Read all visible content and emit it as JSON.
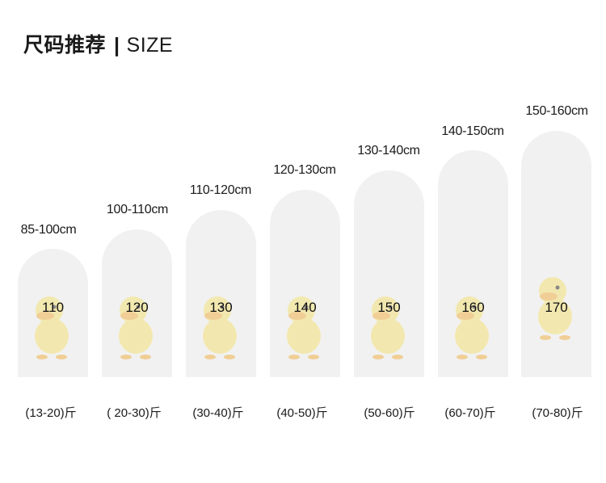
{
  "title": {
    "cn": "尺码推荐",
    "separator": "|",
    "en": "SIZE"
  },
  "sizes": [
    {
      "height": "85-100cm",
      "size": "110",
      "weight": "(13-20)斤"
    },
    {
      "height": "100-110cm",
      "size": "120",
      "weight": "( 20-30)斤"
    },
    {
      "height": "110-120cm",
      "size": "130",
      "weight": "(30-40)斤"
    },
    {
      "height": "120-130cm",
      "size": "140",
      "weight": "(40-50)斤"
    },
    {
      "height": "130-140cm",
      "size": "150",
      "weight": "(50-60)斤"
    },
    {
      "height": "140-150cm",
      "size": "160",
      "weight": "(60-70)斤"
    },
    {
      "height": "150-160cm",
      "size": "170",
      "weight": "(70-80)斤"
    }
  ],
  "colors": {
    "pill": "#f1f1f1",
    "duck_body": "#f3e27a",
    "duck_beak": "#f0b24a"
  },
  "icons": {
    "mascot": "yellow-duck-icon"
  }
}
